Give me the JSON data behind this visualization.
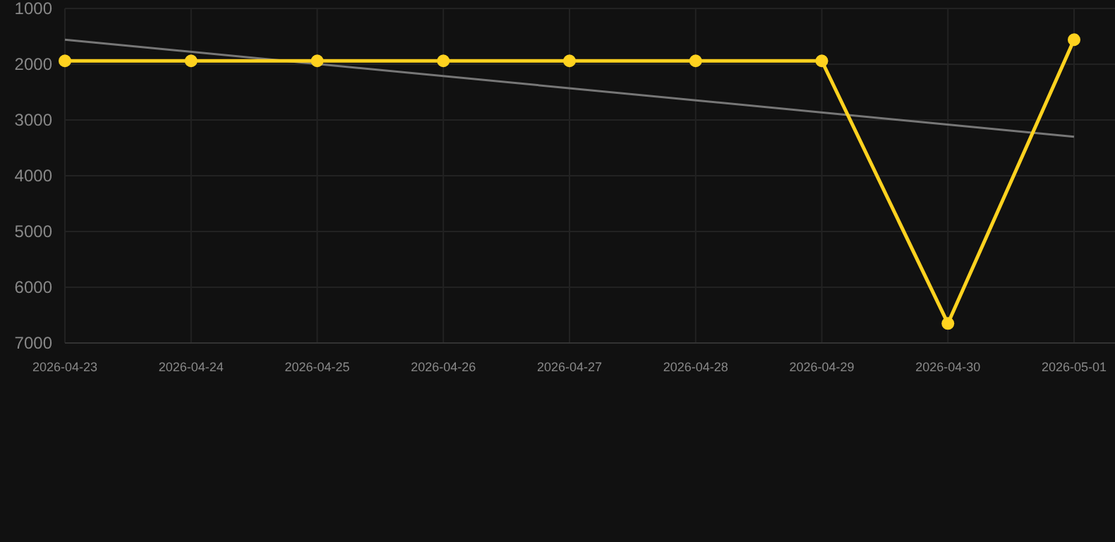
{
  "chart_data": {
    "type": "line",
    "xlim": [
      "2026-04-23",
      "2026-05-01"
    ],
    "xticks": [
      "2026-04-23",
      "2026-04-24",
      "2026-04-25",
      "2026-04-26",
      "2026-04-27",
      "2026-04-28",
      "2026-04-29",
      "2026-04-30",
      "2026-05-01"
    ],
    "ylim": [
      7000,
      1000
    ],
    "yticks": [
      1000,
      2000,
      3000,
      4000,
      5000,
      6000,
      7000
    ],
    "grid": true,
    "series": [
      {
        "color": "#ffd21f",
        "marker": "circle",
        "x": [
          "2026-04-23",
          "2026-04-24",
          "2026-04-25",
          "2026-04-26",
          "2026-04-27",
          "2026-04-28",
          "2026-04-29",
          "2026-04-30",
          "2026-05-01"
        ],
        "values": [
          1940,
          1940,
          1940,
          1940,
          1940,
          1940,
          1940,
          6650,
          1560
        ]
      },
      {
        "color": "#777777",
        "marker": "none",
        "x": [
          "2026-04-23",
          "2026-05-01"
        ],
        "values": [
          1560,
          3300
        ]
      }
    ]
  }
}
